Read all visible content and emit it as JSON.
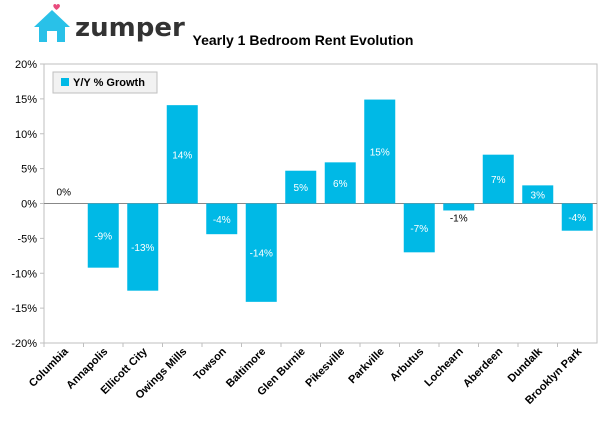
{
  "brand": {
    "name": "zumper",
    "accent": "#29C1E8",
    "heart_color": "#E94B7D",
    "text_color": "#333333"
  },
  "chart_data": {
    "type": "bar",
    "title": "Yearly 1 Bedroom Rent Evolution",
    "xlabel": "",
    "ylabel": "",
    "ylim": [
      -20,
      20
    ],
    "yticks": [
      -20,
      -15,
      -10,
      -5,
      0,
      5,
      10,
      15,
      20
    ],
    "ytick_labels": [
      "-20%",
      "-15%",
      "-10%",
      "-5%",
      "0%",
      "5%",
      "10%",
      "15%",
      "20%"
    ],
    "grid": false,
    "legend_position": "top-left",
    "bar_color": "#00B9E6",
    "categories": [
      "Columbia",
      "Annapolis",
      "Ellicott City",
      "Owings Mills",
      "Towson",
      "Baltimore",
      "Glen Burnie",
      "Pikesville",
      "Parkville",
      "Arbutus",
      "Lochearn",
      "Aberdeen",
      "Dundalk",
      "Brooklyn Park"
    ],
    "series": [
      {
        "name": "Y/Y % Growth",
        "values": [
          0,
          -9.2,
          -12.5,
          14.1,
          -4.4,
          -14.1,
          4.7,
          5.9,
          14.9,
          -7.0,
          -1.0,
          7.0,
          2.6,
          -3.9
        ],
        "labels": [
          "0%",
          "-9%",
          "-13%",
          "14%",
          "-4%",
          "-14%",
          "5%",
          "6%",
          "15%",
          "-7%",
          "-1%",
          "7%",
          "3%",
          "-4%"
        ]
      }
    ]
  }
}
